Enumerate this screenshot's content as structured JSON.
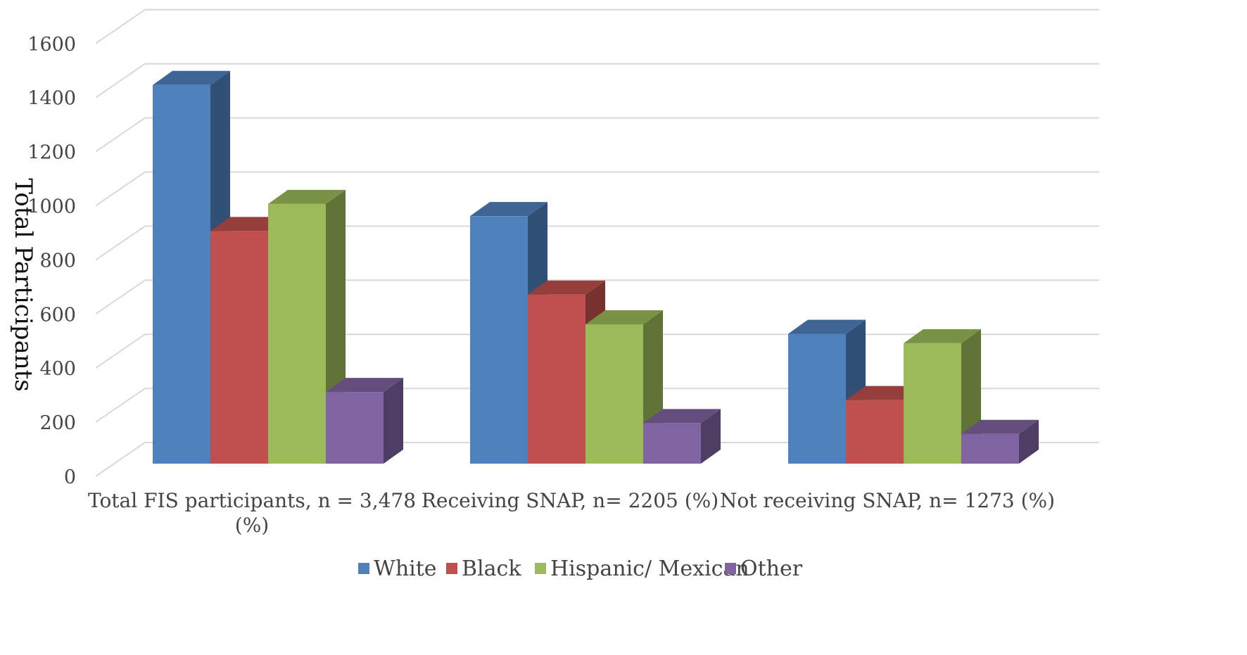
{
  "chart_data": {
    "type": "bar",
    "style": "3d-clustered-column",
    "ylabel": "Total Participants",
    "ylim": [
      0,
      1600
    ],
    "yticks": [
      "0",
      "200",
      "400",
      "600",
      "800",
      "1000",
      "1200",
      "1400",
      "1600"
    ],
    "grid": true,
    "legend": "bottom",
    "categories": [
      [
        "Total FIS participants,  n =  3,478",
        "(%)"
      ],
      [
        "Receiving SNAP, n= 2205  (%)"
      ],
      [
        "Not receiving SNAP, n= 1273 (%)"
      ]
    ],
    "series": [
      {
        "name": "White",
        "color": "#4F81BD",
        "values": [
          1400,
          915,
          480
        ]
      },
      {
        "name": "Black",
        "color": "#C0504D",
        "values": [
          860,
          625,
          235
        ]
      },
      {
        "name": "Hispanic/ Mexican",
        "color": "#9BBB59",
        "values": [
          960,
          515,
          445
        ]
      },
      {
        "name": "Other",
        "color": "#8064A2",
        "values": [
          265,
          150,
          110
        ]
      }
    ]
  }
}
